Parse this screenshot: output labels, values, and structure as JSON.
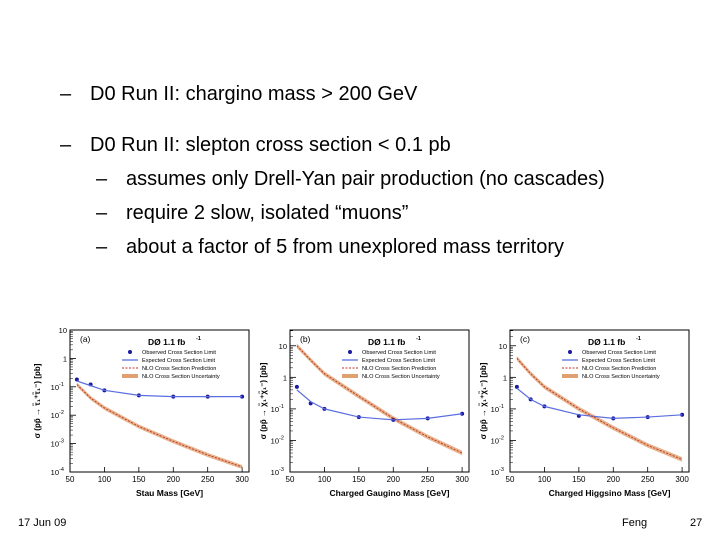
{
  "slide": {
    "bullets": [
      {
        "dash": "–",
        "text": "D0 Run II: chargino mass > 200 GeV"
      },
      {
        "dash": "–",
        "text": "D0 Run II: slepton cross section < 0.1 pb"
      }
    ],
    "subbullets": [
      {
        "dash": "–",
        "text": "assumes only Drell-Yan pair production (no cascades)"
      },
      {
        "dash": "–",
        "text": "require 2 slow, isolated “muons”"
      },
      {
        "dash": "–",
        "text": "about a factor of 5 from unexplored mass territory"
      }
    ],
    "footer": {
      "date": "17 Jun 09",
      "author": "Feng",
      "page": "27"
    }
  },
  "colors": {
    "observed": "#1a1aa0",
    "expected": "#5b6ee0",
    "nlo_pred": "#c03020",
    "nlo_unc": "#e0a070",
    "frame": "#000000"
  },
  "chart_data": [
    {
      "type": "line",
      "panel": "(a)",
      "experiment": "DØ 1.1 fb",
      "exp_sup": "-1",
      "xlabel": "Stau Mass [GeV]",
      "ylabel": "σ (pp̄ → τ̃₁⁺τ̃₁⁻) [pb]",
      "xlim": [
        50,
        310
      ],
      "ylim_log10": [
        -4,
        1
      ],
      "xticks": [
        50,
        100,
        150,
        200,
        250,
        300
      ],
      "yticks": [
        {
          "e": 1,
          "label": "10"
        },
        {
          "e": 0,
          "label": "1"
        },
        {
          "e": -1,
          "label": "10"
        },
        {
          "e": -2,
          "label": "10"
        },
        {
          "e": -3,
          "label": "10"
        },
        {
          "e": -4,
          "label": "10"
        }
      ],
      "ytick_sup": [
        "",
        "",
        "-1",
        "-2",
        "-3",
        "-4"
      ],
      "legend": [
        "Observed Cross Section Limit",
        "Expected Cross Section Limit",
        "NLO Cross Section Prediction",
        "NLO Cross Section Uncertainty"
      ],
      "series": [
        {
          "name": "Observed Cross Section Limit",
          "style": "points",
          "x": [
            60,
            80,
            100,
            150,
            200,
            250,
            300
          ],
          "y": [
            0.18,
            0.12,
            0.075,
            0.05,
            0.045,
            0.045,
            0.045
          ]
        },
        {
          "name": "Expected Cross Section Limit",
          "style": "line",
          "x": [
            60,
            80,
            100,
            150,
            200,
            250,
            300
          ],
          "y": [
            0.16,
            0.11,
            0.075,
            0.05,
            0.045,
            0.045,
            0.045
          ]
        },
        {
          "name": "NLO Cross Section Prediction",
          "style": "line",
          "x": [
            60,
            80,
            100,
            150,
            200,
            250,
            300
          ],
          "y": [
            0.12,
            0.04,
            0.018,
            0.004,
            0.0012,
            0.0004,
            0.00015
          ]
        },
        {
          "name": "NLO Cross Section Uncertainty",
          "style": "band",
          "x": [
            60,
            80,
            100,
            150,
            200,
            250,
            300
          ],
          "y": [
            0.12,
            0.04,
            0.018,
            0.004,
            0.0012,
            0.0004,
            0.00015
          ]
        }
      ]
    },
    {
      "type": "line",
      "panel": "(b)",
      "experiment": "DØ 1.1 fb",
      "exp_sup": "-1",
      "xlabel": "Charged Gaugino Mass [GeV]",
      "ylabel": "σ (pp̄ → χ̃₁⁺χ̃₁⁻) [pb]",
      "xlim": [
        50,
        310
      ],
      "ylim_log10": [
        -3,
        1.5
      ],
      "xticks": [
        50,
        100,
        150,
        200,
        250,
        300
      ],
      "yticks": [
        {
          "e": 1,
          "label": "10"
        },
        {
          "e": 0,
          "label": "1"
        },
        {
          "e": -1,
          "label": "10"
        },
        {
          "e": -2,
          "label": "10"
        },
        {
          "e": -3,
          "label": "10"
        }
      ],
      "ytick_sup": [
        "",
        "",
        "-1",
        "-2",
        "-3"
      ],
      "legend": [
        "Observed Cross Section Limit",
        "Expected Cross Section Limit",
        "NLO Cross Section Prediction",
        "NLO Cross Section Uncertainty"
      ],
      "series": [
        {
          "name": "Observed Cross Section Limit",
          "style": "points",
          "x": [
            60,
            80,
            100,
            150,
            200,
            250,
            300
          ],
          "y": [
            0.5,
            0.15,
            0.1,
            0.055,
            0.045,
            0.05,
            0.07
          ]
        },
        {
          "name": "Expected Cross Section Limit",
          "style": "line",
          "x": [
            60,
            80,
            100,
            150,
            200,
            250,
            300
          ],
          "y": [
            0.4,
            0.17,
            0.1,
            0.055,
            0.045,
            0.05,
            0.07
          ]
        },
        {
          "name": "NLO Cross Section Prediction",
          "style": "line",
          "x": [
            60,
            80,
            100,
            150,
            200,
            250,
            300
          ],
          "y": [
            10,
            3.5,
            1.3,
            0.25,
            0.05,
            0.013,
            0.004
          ]
        },
        {
          "name": "NLO Cross Section Uncertainty",
          "style": "band",
          "x": [
            60,
            80,
            100,
            150,
            200,
            250,
            300
          ],
          "y": [
            10,
            3.5,
            1.3,
            0.25,
            0.05,
            0.013,
            0.004
          ]
        }
      ]
    },
    {
      "type": "line",
      "panel": "(c)",
      "experiment": "DØ 1.1 fb",
      "exp_sup": "-1",
      "xlabel": "Charged Higgsino Mass [GeV]",
      "ylabel": "σ (pp̄ → χ̃₁⁺χ̃₁⁻) [pb]",
      "xlim": [
        50,
        310
      ],
      "ylim_log10": [
        -3,
        1.5
      ],
      "xticks": [
        50,
        100,
        150,
        200,
        250,
        300
      ],
      "yticks": [
        {
          "e": 1,
          "label": "10"
        },
        {
          "e": 0,
          "label": "1"
        },
        {
          "e": -1,
          "label": "10"
        },
        {
          "e": -2,
          "label": "10"
        },
        {
          "e": -3,
          "label": "10"
        }
      ],
      "ytick_sup": [
        "",
        "",
        "-1",
        "-2",
        "-3"
      ],
      "legend": [
        "Observed Cross Section Limit",
        "Expected Cross Section Limit",
        "NLO Cross Section Prediction",
        "NLO Cross Section Uncertainty"
      ],
      "series": [
        {
          "name": "Observed Cross Section Limit",
          "style": "points",
          "x": [
            60,
            80,
            100,
            150,
            200,
            250,
            300
          ],
          "y": [
            0.5,
            0.2,
            0.12,
            0.06,
            0.05,
            0.055,
            0.065
          ]
        },
        {
          "name": "Expected Cross Section Limit",
          "style": "line",
          "x": [
            60,
            80,
            100,
            150,
            200,
            250,
            300
          ],
          "y": [
            0.45,
            0.2,
            0.12,
            0.065,
            0.05,
            0.055,
            0.065
          ]
        },
        {
          "name": "NLO Cross Section Prediction",
          "style": "line",
          "x": [
            60,
            80,
            100,
            150,
            200,
            250,
            300
          ],
          "y": [
            4,
            1.3,
            0.5,
            0.1,
            0.025,
            0.007,
            0.0025
          ]
        },
        {
          "name": "NLO Cross Section Uncertainty",
          "style": "band",
          "x": [
            60,
            80,
            100,
            150,
            200,
            250,
            300
          ],
          "y": [
            4,
            1.3,
            0.5,
            0.1,
            0.025,
            0.007,
            0.0025
          ]
        }
      ]
    }
  ]
}
